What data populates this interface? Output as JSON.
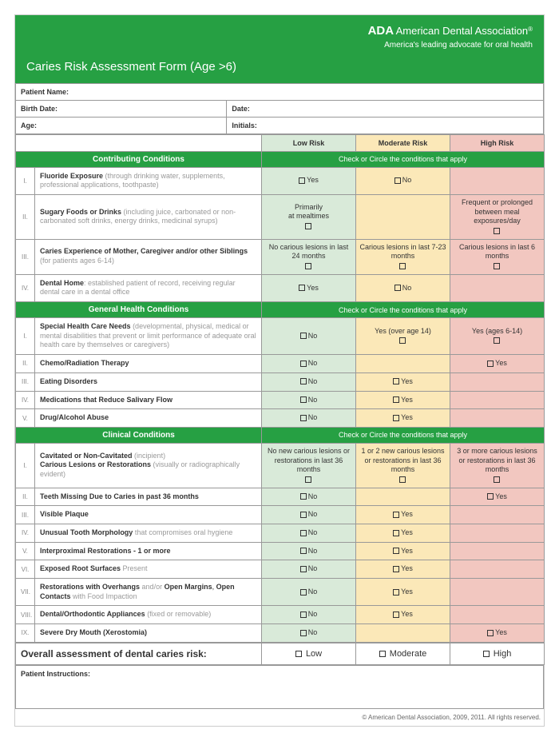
{
  "header": {
    "ada": "ADA",
    "name": "American Dental Association",
    "reg": "®",
    "tag": "America's leading advocate for oral health",
    "title": "Caries Risk Assessment Form (Age >6)"
  },
  "meta": {
    "patient": "Patient Name:",
    "birth": "Birth Date:",
    "date": "Date:",
    "age": "Age:",
    "initials": "Initials:"
  },
  "risk": {
    "low": "Low Risk",
    "mod": "Moderate Risk",
    "high": "High Risk"
  },
  "instr": "Check or Circle the conditions that apply",
  "sec1": {
    "title": "Contributing Conditions",
    "rows": [
      {
        "n": "I.",
        "b": "Fluoride Exposure",
        "g": " (through drinking water, supplements, professional applications, toothpaste)",
        "low": "☐Yes",
        "mod": "☐No",
        "hig": ""
      },
      {
        "n": "II.",
        "b": "Sugary Foods or Drinks",
        "g": " (including juice, carbonated or non-carbonated soft drinks, energy drinks, medicinal syrups)",
        "low": "Primarily\nat mealtimes\n☐",
        "mod": "",
        "hig": "Frequent or prolonged between meal exposures/day\n☐"
      },
      {
        "n": "III.",
        "b": "Caries Experience of Mother, Caregiver and/or other Siblings",
        "g": " (for patients ages 6-14)",
        "low": "No carious lesions in last 24 months\n☐",
        "mod": "Carious lesions in last 7-23 months\n☐",
        "hig": "Carious lesions in last 6 months\n☐"
      },
      {
        "n": "IV.",
        "b": "Dental Home",
        "g": ": established patient of record, receiving regular dental care in a dental office",
        "low": "☐Yes",
        "mod": "☐No",
        "hig": ""
      }
    ]
  },
  "sec2": {
    "title": "General Health Conditions",
    "rows": [
      {
        "n": "I.",
        "b": "Special Health Care Needs",
        "g": " (developmental, physical, medical or mental disabilities that prevent or limit performance of adequate oral health care by themselves or caregivers)",
        "low": "☐No",
        "mod": "Yes (over age 14)\n☐",
        "hig": "Yes (ages 6-14)\n☐"
      },
      {
        "n": "II.",
        "b": "Chemo/Radiation Therapy",
        "g": "",
        "low": "☐No",
        "mod": "",
        "hig": "☐Yes"
      },
      {
        "n": "III.",
        "b": "Eating Disorders",
        "g": "",
        "low": "☐No",
        "mod": "☐Yes",
        "hig": ""
      },
      {
        "n": "IV.",
        "b": "Medications that Reduce Salivary Flow",
        "g": "",
        "low": "☐No",
        "mod": "☐Yes",
        "hig": ""
      },
      {
        "n": "V.",
        "b": "Drug/Alcohol Abuse",
        "g": "",
        "low": "☐No",
        "mod": "☐Yes",
        "hig": ""
      }
    ]
  },
  "sec3": {
    "title": "Clinical Conditions",
    "rows": [
      {
        "n": "I.",
        "html": "<b>Cavitated or Non-Cavitated</b> <span class='g'>(incipient)</span><br><b>Carious Lesions or Restorations</b> <span class='g'>(visually or radiographically evident)</span>",
        "low": "No new carious lesions or restorations in last 36 months\n☐",
        "mod": "1 or 2 new carious lesions or restorations in last 36 months\n☐",
        "hig": "3 or more carious lesions or restorations in last 36 months\n☐"
      },
      {
        "n": "II.",
        "b": "Teeth Missing Due to Caries in past 36 months",
        "g": "",
        "low": "☐No",
        "mod": "",
        "hig": "☐Yes"
      },
      {
        "n": "III.",
        "b": "Visible Plaque",
        "g": "",
        "low": "☐No",
        "mod": "☐Yes",
        "hig": ""
      },
      {
        "n": "IV.",
        "b": "Unusual Tooth Morphology",
        "g": " that compromises oral hygiene",
        "low": "☐No",
        "mod": "☐Yes",
        "hig": ""
      },
      {
        "n": "V.",
        "b": "Interproximal Restorations - 1 or more",
        "g": "",
        "low": "☐No",
        "mod": "☐Yes",
        "hig": ""
      },
      {
        "n": "VI.",
        "b": "Exposed Root Surfaces",
        "g": " Present",
        "low": "☐No",
        "mod": "☐Yes",
        "hig": ""
      },
      {
        "n": "VII.",
        "html": "<b>Restorations with Overhangs</b> <span class='g'>and/or</span> <b>Open Margins</b>, <b>Open Contacts</b> <span class='g'>with Food Impaction</span>",
        "low": "☐No",
        "mod": "☐Yes",
        "hig": ""
      },
      {
        "n": "VIII.",
        "b": "Dental/Orthodontic Appliances",
        "g": " (fixed or removable)",
        "low": "☐No",
        "mod": "☐Yes",
        "hig": ""
      },
      {
        "n": "IX.",
        "b": "Severe Dry Mouth (Xerostomia)",
        "g": "",
        "low": "☐No",
        "mod": "",
        "hig": "☐Yes"
      }
    ]
  },
  "overall": {
    "label": "Overall assessment of dental caries risk:",
    "low": "Low",
    "mod": "Moderate",
    "hig": "High"
  },
  "pinstr": "Patient Instructions:",
  "copy": "© American Dental Association, 2009, 2011. All rights reserved."
}
